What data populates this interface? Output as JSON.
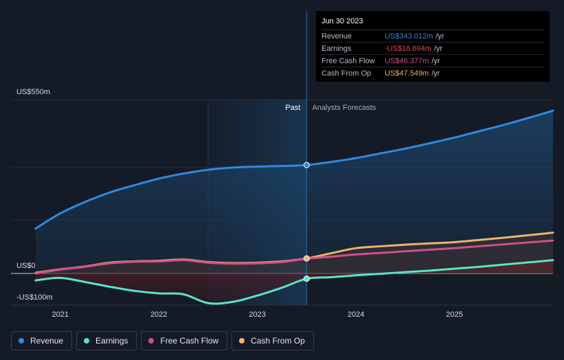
{
  "chart_data": {
    "type": "line",
    "x_unit": "year",
    "y_unit": "US$ millions",
    "ylim": [
      -100,
      550
    ],
    "xlim": [
      2020.5,
      2026.0
    ],
    "y_axis_labels": [
      {
        "value": 550,
        "label": "US$550m"
      },
      {
        "value": 0,
        "label": "US$0"
      },
      {
        "value": -100,
        "label": "-US$100m"
      }
    ],
    "x_ticks": [
      {
        "value": 2021.0,
        "label": "2021"
      },
      {
        "value": 2022.0,
        "label": "2022"
      },
      {
        "value": 2023.0,
        "label": "2023"
      },
      {
        "value": 2024.0,
        "label": "2024"
      },
      {
        "value": 2025.0,
        "label": "2025"
      }
    ],
    "past_label": "Past",
    "forecast_label": "Analysts Forecasts",
    "past_start": 2022.5,
    "divider": 2023.5,
    "series": [
      {
        "key": "revenue",
        "name": "Revenue",
        "color": "#2f8ae0",
        "x": [
          2020.75,
          2021.0,
          2021.25,
          2021.5,
          2021.75,
          2022.0,
          2022.25,
          2022.5,
          2022.75,
          2023.0,
          2023.25,
          2023.5,
          2023.75,
          2024.0,
          2024.25,
          2024.5,
          2024.75,
          2025.0,
          2025.25,
          2025.5,
          2025.75,
          2026.0
        ],
        "y": [
          142,
          190,
          226,
          256,
          279,
          300,
          316,
          328,
          335,
          338,
          340,
          343,
          353,
          365,
          380,
          395,
          412,
          430,
          450,
          470,
          492,
          515
        ]
      },
      {
        "key": "earnings",
        "name": "Earnings",
        "color": "#58e6c7",
        "x": [
          2020.75,
          2021.0,
          2021.25,
          2021.5,
          2021.75,
          2022.0,
          2022.25,
          2022.5,
          2022.75,
          2023.0,
          2023.25,
          2023.5,
          2023.75,
          2024.0,
          2024.25,
          2024.5,
          2024.75,
          2025.0,
          2025.25,
          2025.5,
          2025.75,
          2026.0
        ],
        "y": [
          -22,
          -14,
          -27,
          -42,
          -55,
          -63,
          -66,
          -94,
          -90,
          -70,
          -45,
          -16.694,
          -12,
          -6,
          -1,
          4,
          9,
          15,
          21,
          28,
          35,
          42
        ]
      },
      {
        "key": "fcf",
        "name": "Free Cash Flow",
        "color": "#d0508a",
        "x": [
          2020.75,
          2021.0,
          2021.25,
          2021.5,
          2021.75,
          2022.0,
          2022.25,
          2022.5,
          2022.75,
          2023.0,
          2023.25,
          2023.5,
          2023.75,
          2024.0,
          2024.25,
          2024.5,
          2024.75,
          2025.0,
          2025.25,
          2025.5,
          2025.75,
          2026.0
        ],
        "y": [
          0,
          12,
          21,
          32,
          37,
          38,
          42,
          34,
          31,
          32,
          36,
          46.377,
          53,
          60,
          65,
          70,
          75,
          80,
          86,
          92,
          98,
          104
        ]
      },
      {
        "key": "cfo",
        "name": "Cash From Op",
        "color": "#eeb36a",
        "x": [
          2020.75,
          2021.0,
          2021.25,
          2021.5,
          2021.75,
          2022.0,
          2022.25,
          2022.5,
          2022.75,
          2023.0,
          2023.25,
          2023.5,
          2023.75,
          2024.0,
          2024.25,
          2024.5,
          2024.75,
          2025.0,
          2025.25,
          2025.5,
          2025.75,
          2026.0
        ],
        "y": [
          2,
          13,
          22,
          34,
          38,
          40,
          44,
          36,
          33,
          34,
          38,
          47.549,
          64,
          80,
          86,
          91,
          95,
          99,
          106,
          113,
          121,
          129
        ]
      }
    ]
  },
  "tooltip": {
    "date": "Jun 30 2023",
    "rows": [
      {
        "label": "Revenue",
        "value": "US$343.012m",
        "unit": "/yr",
        "color": "#2f8ae0"
      },
      {
        "label": "Earnings",
        "value": "-US$16.694m",
        "unit": "/yr",
        "color": "#e0474c"
      },
      {
        "label": "Free Cash Flow",
        "value": "US$46.377m",
        "unit": "/yr",
        "color": "#d0508a"
      },
      {
        "label": "Cash From Op",
        "value": "US$47.549m",
        "unit": "/yr",
        "color": "#eeb36a"
      }
    ]
  },
  "legend": [
    {
      "label": "Revenue",
      "color": "#2f8ae0"
    },
    {
      "label": "Earnings",
      "color": "#58e6c7"
    },
    {
      "label": "Free Cash Flow",
      "color": "#d0508a"
    },
    {
      "label": "Cash From Op",
      "color": "#eeb36a"
    }
  ]
}
